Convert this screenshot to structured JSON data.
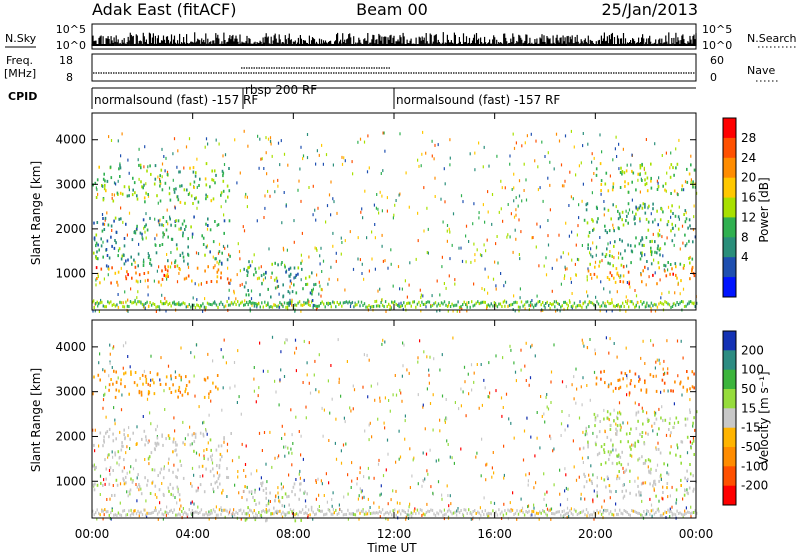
{
  "header": {
    "station": "Adak East (fitACF)",
    "beam": "Beam 00",
    "date": "25/Jan/2013"
  },
  "strip_labels": {
    "nsky": "N.Sky",
    "freq_top": "Freq.",
    "freq_unit": "[MHz]",
    "cpid": "CPID",
    "nsearch": "N.Search",
    "nave": "Nave",
    "nsky_ticks": [
      "10^5",
      "10^0"
    ],
    "nsearch_ticks": [
      "10^5",
      "10^0"
    ],
    "freq_ticks": [
      "18",
      "8"
    ],
    "nave_ticks": [
      "60",
      "0"
    ]
  },
  "cpid_segments": [
    {
      "start_hour": 0,
      "end_hour": 6,
      "label": "normalsound (fast) -157 RF"
    },
    {
      "start_hour": 6,
      "end_hour": 12,
      "label": "rbsp 200 RF"
    },
    {
      "start_hour": 12,
      "end_hour": 24,
      "label": "normalsound (fast) -157 RF"
    }
  ],
  "power_colorbar": {
    "title": "Power [dB]",
    "ticks": [
      "28",
      "24",
      "20",
      "16",
      "12",
      "8",
      "4"
    ],
    "colors": [
      "#ff0000",
      "#ff5000",
      "#ff8c00",
      "#ffc800",
      "#a8e000",
      "#30b050",
      "#2a8e7a",
      "#1e4fb0",
      "#0014ff"
    ]
  },
  "velocity_colorbar": {
    "title": "Velocity [m s⁻¹]",
    "ticks": [
      "200",
      "100",
      "50",
      "15",
      "-15",
      "-50",
      "-100",
      "-200"
    ],
    "colors": [
      "#1432b4",
      "#2d8c82",
      "#3cb43c",
      "#96dc3c",
      "#c8c8c8",
      "#ffb400",
      "#ff8c00",
      "#ff5000",
      "#ff0000"
    ]
  },
  "chart_data": {
    "type": "heatmap",
    "xlabel": "Time UT",
    "xlim_hours": [
      0,
      24
    ],
    "x_ticks": [
      "00:00",
      "04:00",
      "08:00",
      "12:00",
      "16:00",
      "20:00",
      "00:00"
    ],
    "ylabel": "Slant Range [km]",
    "ylim_km": [
      180,
      4600
    ],
    "y_ticks": [
      1000,
      2000,
      3000,
      4000
    ],
    "panels": [
      {
        "quantity": "Power [dB]",
        "regions": [
          {
            "t_start": 0.0,
            "t_end": 5.5,
            "r_low": 800,
            "r_high": 1200,
            "level_db": 24
          },
          {
            "t_start": 0.0,
            "t_end": 5.5,
            "r_low": 1200,
            "r_high": 2300,
            "level_db": 10
          },
          {
            "t_start": 0.0,
            "t_end": 5.5,
            "r_low": 2600,
            "r_high": 3500,
            "level_db": 14
          },
          {
            "t_start": 6.0,
            "t_end": 9.0,
            "r_low": 250,
            "r_high": 1300,
            "level_db": 10
          },
          {
            "t_start": 19.5,
            "t_end": 24.0,
            "r_low": 800,
            "r_high": 1200,
            "level_db": 24
          },
          {
            "t_start": 19.5,
            "t_end": 24.0,
            "r_low": 1200,
            "r_high": 2600,
            "level_db": 12
          },
          {
            "t_start": 20.0,
            "t_end": 24.0,
            "r_low": 2800,
            "r_high": 3500,
            "level_db": 16
          }
        ]
      },
      {
        "quantity": "Velocity [m s⁻¹]",
        "regions": [
          {
            "t_start": 0.0,
            "t_end": 5.5,
            "r_low": 700,
            "r_high": 1400,
            "level_ms": 0
          },
          {
            "t_start": 0.0,
            "t_end": 5.5,
            "r_low": 1500,
            "r_high": 2200,
            "level_ms": 0
          },
          {
            "t_start": 0.0,
            "t_end": 5.0,
            "r_low": 2900,
            "r_high": 3500,
            "level_ms": -75
          },
          {
            "t_start": 6.0,
            "t_end": 9.0,
            "r_low": 400,
            "r_high": 1000,
            "level_ms": 0
          },
          {
            "t_start": 6.0,
            "t_end": 8.5,
            "r_low": 150,
            "r_high": 350,
            "level_ms": 40
          },
          {
            "t_start": 19.5,
            "t_end": 24.0,
            "r_low": 700,
            "r_high": 1300,
            "level_ms": 0
          },
          {
            "t_start": 19.5,
            "t_end": 24.0,
            "r_low": 1400,
            "r_high": 2600,
            "level_ms": 30
          },
          {
            "t_start": 20.0,
            "t_end": 24.0,
            "r_low": 3000,
            "r_high": 3500,
            "level_ms": -120
          }
        ]
      }
    ]
  }
}
